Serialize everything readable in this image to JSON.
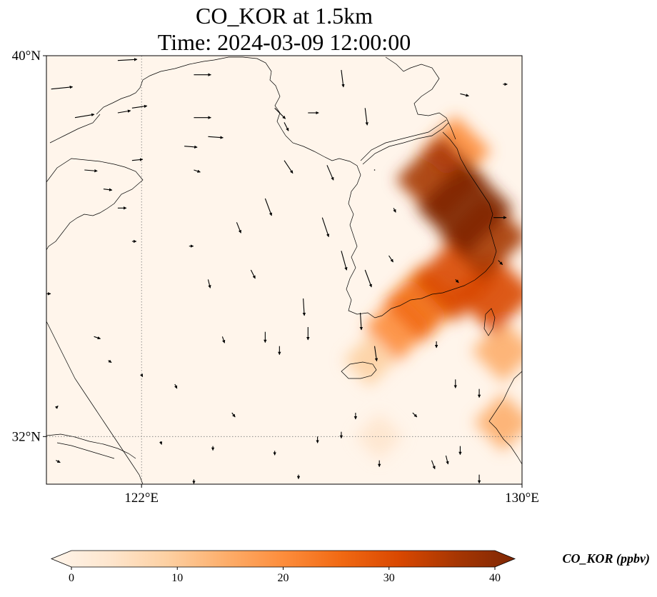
{
  "title_line1": "CO_KOR at 1.5km",
  "title_line2": "Time: 2024-03-09 12:00:00",
  "map": {
    "extent": {
      "lon_min": 120,
      "lon_max": 130,
      "lat_min": 31,
      "lat_max": 40
    },
    "lat_ticks": [
      {
        "value": 40,
        "label": "40°N"
      },
      {
        "value": 32,
        "label": "32°N"
      }
    ],
    "lon_ticks": [
      {
        "value": 122,
        "label": "122°E"
      },
      {
        "value": 130,
        "label": "130°E"
      }
    ],
    "gridlines": {
      "lon": [
        122
      ],
      "lat": [
        32
      ],
      "style": "dotted"
    },
    "coastline_color": "#000000",
    "background_color": "#fff5eb"
  },
  "colorbar": {
    "title": "CO_KOR (ppbv)",
    "min": 0,
    "max": 40,
    "ticks": [
      {
        "value": 0,
        "label": "0"
      },
      {
        "value": 10,
        "label": "10"
      },
      {
        "value": 20,
        "label": "20"
      },
      {
        "value": 30,
        "label": "30"
      },
      {
        "value": 40,
        "label": "40"
      }
    ],
    "colormap": [
      "#fff5eb",
      "#fee6ce",
      "#fdd0a2",
      "#fdae6b",
      "#fd8d3c",
      "#f16913",
      "#d94801",
      "#a63603",
      "#7f2704"
    ],
    "extend": "both"
  },
  "co_field": [
    {
      "lon": 128.8,
      "lat": 36.8,
      "value": 40
    },
    {
      "lon": 128.3,
      "lat": 37.4,
      "value": 36
    },
    {
      "lon": 129.2,
      "lat": 36.2,
      "value": 34
    },
    {
      "lon": 128.6,
      "lat": 35.3,
      "value": 32
    },
    {
      "lon": 129.4,
      "lat": 35.0,
      "value": 30
    },
    {
      "lon": 127.9,
      "lat": 34.8,
      "value": 27
    },
    {
      "lon": 128.6,
      "lat": 38.0,
      "value": 22
    },
    {
      "lon": 127.4,
      "lat": 34.3,
      "value": 20
    },
    {
      "lon": 129.6,
      "lat": 33.8,
      "value": 16
    },
    {
      "lon": 129.6,
      "lat": 32.3,
      "value": 13
    },
    {
      "lon": 126.8,
      "lat": 33.6,
      "value": 9
    },
    {
      "lon": 127.0,
      "lat": 32.0,
      "value": 5
    }
  ],
  "wind_vectors": [
    {
      "lon": 120.1,
      "lat": 39.3,
      "u": 1.0,
      "v": 0.1
    },
    {
      "lon": 120.6,
      "lat": 38.7,
      "u": 0.9,
      "v": 0.15
    },
    {
      "lon": 121.8,
      "lat": 38.9,
      "u": 0.7,
      "v": 0.1
    },
    {
      "lon": 121.5,
      "lat": 38.8,
      "u": 0.6,
      "v": 0.1
    },
    {
      "lon": 121.5,
      "lat": 39.9,
      "u": 0.9,
      "v": 0.05
    },
    {
      "lon": 123.1,
      "lat": 39.6,
      "u": 0.8,
      "v": 0.0
    },
    {
      "lon": 123.1,
      "lat": 38.7,
      "u": 0.8,
      "v": 0.0
    },
    {
      "lon": 123.4,
      "lat": 38.3,
      "u": 0.7,
      "v": -0.05
    },
    {
      "lon": 122.9,
      "lat": 38.1,
      "u": 0.6,
      "v": -0.05
    },
    {
      "lon": 120.8,
      "lat": 37.6,
      "u": 0.6,
      "v": -0.05
    },
    {
      "lon": 121.2,
      "lat": 37.2,
      "u": 0.4,
      "v": -0.05
    },
    {
      "lon": 121.8,
      "lat": 37.8,
      "u": 0.5,
      "v": 0.05
    },
    {
      "lon": 123.1,
      "lat": 37.6,
      "u": 0.3,
      "v": -0.1
    },
    {
      "lon": 124.8,
      "lat": 38.9,
      "u": 0.5,
      "v": -0.5
    },
    {
      "lon": 125.0,
      "lat": 38.6,
      "u": 0.2,
      "v": -0.4
    },
    {
      "lon": 125.5,
      "lat": 38.8,
      "u": 0.5,
      "v": 0.0
    },
    {
      "lon": 125.0,
      "lat": 37.8,
      "u": 0.4,
      "v": -0.6
    },
    {
      "lon": 125.9,
      "lat": 37.7,
      "u": 0.3,
      "v": -0.7
    },
    {
      "lon": 126.2,
      "lat": 39.7,
      "u": 0.1,
      "v": -0.8
    },
    {
      "lon": 126.7,
      "lat": 38.9,
      "u": 0.1,
      "v": -0.8
    },
    {
      "lon": 124.6,
      "lat": 37.0,
      "u": 0.3,
      "v": -0.8
    },
    {
      "lon": 125.8,
      "lat": 36.6,
      "u": 0.3,
      "v": -0.9
    },
    {
      "lon": 126.2,
      "lat": 35.9,
      "u": 0.25,
      "v": -0.9
    },
    {
      "lon": 126.7,
      "lat": 35.5,
      "u": 0.3,
      "v": -0.8
    },
    {
      "lon": 126.6,
      "lat": 34.6,
      "u": 0.05,
      "v": -0.8
    },
    {
      "lon": 126.9,
      "lat": 33.9,
      "u": 0.1,
      "v": -0.7
    },
    {
      "lon": 125.4,
      "lat": 34.9,
      "u": 0.05,
      "v": -0.8
    },
    {
      "lon": 125.5,
      "lat": 34.3,
      "u": 0.0,
      "v": -0.6
    },
    {
      "lon": 124.6,
      "lat": 34.2,
      "u": 0.0,
      "v": -0.5
    },
    {
      "lon": 124.9,
      "lat": 33.9,
      "u": 0.0,
      "v": -0.4
    },
    {
      "lon": 123.4,
      "lat": 35.3,
      "u": 0.1,
      "v": -0.4
    },
    {
      "lon": 124.3,
      "lat": 35.5,
      "u": 0.2,
      "v": -0.4
    },
    {
      "lon": 124.0,
      "lat": 36.5,
      "u": 0.2,
      "v": -0.5
    },
    {
      "lon": 123.7,
      "lat": 34.1,
      "u": 0.1,
      "v": -0.3
    },
    {
      "lon": 121.5,
      "lat": 36.8,
      "u": 0.4,
      "v": 0.0
    },
    {
      "lon": 121.8,
      "lat": 36.1,
      "u": 0.2,
      "v": 0.0
    },
    {
      "lon": 121.0,
      "lat": 34.1,
      "u": 0.3,
      "v": -0.1
    },
    {
      "lon": 122.7,
      "lat": 33.1,
      "u": 0.1,
      "v": -0.2
    },
    {
      "lon": 123.9,
      "lat": 32.5,
      "u": 0.15,
      "v": -0.2
    },
    {
      "lon": 122.4,
      "lat": 31.9,
      "u": 0.05,
      "v": -0.15
    },
    {
      "lon": 123.5,
      "lat": 31.8,
      "u": 0.0,
      "v": -0.2
    },
    {
      "lon": 124.8,
      "lat": 31.7,
      "u": 0.0,
      "v": -0.2
    },
    {
      "lon": 125.7,
      "lat": 32.0,
      "u": 0.0,
      "v": -0.3
    },
    {
      "lon": 126.2,
      "lat": 32.1,
      "u": 0.0,
      "v": -0.3
    },
    {
      "lon": 126.5,
      "lat": 32.5,
      "u": 0.0,
      "v": -0.3
    },
    {
      "lon": 127.7,
      "lat": 32.5,
      "u": 0.2,
      "v": -0.2
    },
    {
      "lon": 128.1,
      "lat": 31.5,
      "u": 0.15,
      "v": -0.4
    },
    {
      "lon": 128.4,
      "lat": 31.6,
      "u": 0.1,
      "v": -0.4
    },
    {
      "lon": 128.7,
      "lat": 31.8,
      "u": 0.0,
      "v": -0.4
    },
    {
      "lon": 127.0,
      "lat": 31.5,
      "u": 0.0,
      "v": -0.3
    },
    {
      "lon": 125.3,
      "lat": 31.2,
      "u": 0.0,
      "v": -0.2
    },
    {
      "lon": 128.6,
      "lat": 33.2,
      "u": 0.0,
      "v": -0.4
    },
    {
      "lon": 129.1,
      "lat": 33.0,
      "u": 0.0,
      "v": -0.4
    },
    {
      "lon": 129.1,
      "lat": 31.2,
      "u": 0.0,
      "v": -0.4
    },
    {
      "lon": 129.5,
      "lat": 35.7,
      "u": 0.2,
      "v": -0.2
    },
    {
      "lon": 128.6,
      "lat": 35.3,
      "u": 0.15,
      "v": -0.15
    },
    {
      "lon": 128.2,
      "lat": 34.0,
      "u": 0.0,
      "v": -0.3
    },
    {
      "lon": 129.4,
      "lat": 36.6,
      "u": 0.6,
      "v": 0.0
    },
    {
      "lon": 127.2,
      "lat": 35.8,
      "u": 0.2,
      "v": -0.3
    },
    {
      "lon": 127.3,
      "lat": 36.8,
      "u": 0.1,
      "v": -0.2
    },
    {
      "lon": 128.7,
      "lat": 39.2,
      "u": 0.4,
      "v": -0.1
    },
    {
      "lon": 129.6,
      "lat": 39.4,
      "u": 0.2,
      "v": 0.0
    },
    {
      "lon": 126.9,
      "lat": 37.6,
      "u": 0.0,
      "v": 0.0
    },
    {
      "lon": 120.2,
      "lat": 31.5,
      "u": 0.2,
      "v": -0.1
    },
    {
      "lon": 120.2,
      "lat": 32.6,
      "u": 0.1,
      "v": 0.1
    },
    {
      "lon": 123.1,
      "lat": 31.1,
      "u": 0.0,
      "v": -0.2
    },
    {
      "lon": 121.3,
      "lat": 33.6,
      "u": 0.15,
      "v": -0.1
    },
    {
      "lon": 122.0,
      "lat": 33.3,
      "u": 0.05,
      "v": -0.1
    },
    {
      "lon": 120.0,
      "lat": 35.0,
      "u": 0.2,
      "v": 0.0
    },
    {
      "lon": 123.0,
      "lat": 36.0,
      "u": 0.2,
      "v": 0.0
    }
  ],
  "wind_scale": 0.5
}
